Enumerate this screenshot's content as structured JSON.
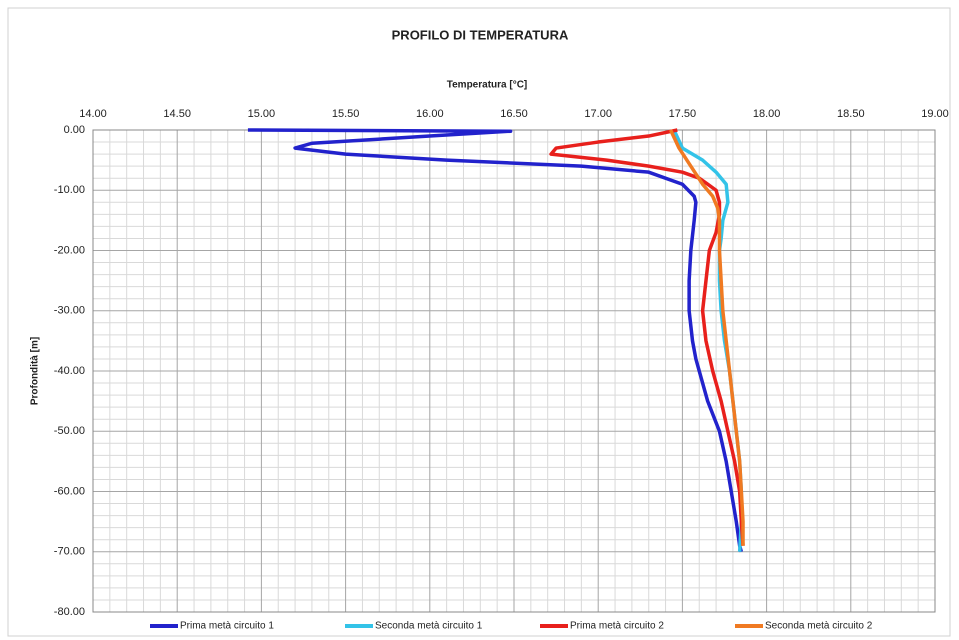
{
  "chart_data": {
    "type": "line",
    "title": "PROFILO DI TEMPERATURA",
    "x_label": "Temperatura [°C]",
    "y_label": "Profondità [m]",
    "xlim": [
      14,
      19
    ],
    "ylim": [
      -80,
      0
    ],
    "xticks": [
      {
        "value": 14,
        "label": "14.00"
      },
      {
        "value": 14.5,
        "label": "14.50"
      },
      {
        "value": 15,
        "label": "15.00"
      },
      {
        "value": 15.5,
        "label": "15.50"
      },
      {
        "value": 16,
        "label": "16.00"
      },
      {
        "value": 16.5,
        "label": "16.50"
      },
      {
        "value": 17,
        "label": "17.00"
      },
      {
        "value": 17.5,
        "label": "17.50"
      },
      {
        "value": 18,
        "label": "18.00"
      },
      {
        "value": 18.5,
        "label": "18.50"
      },
      {
        "value": 19,
        "label": "19.00"
      }
    ],
    "yticks": [
      {
        "value": 0,
        "label": "0.00"
      },
      {
        "value": -10,
        "label": "-10.00"
      },
      {
        "value": -20,
        "label": "-20.00"
      },
      {
        "value": -30,
        "label": "-30.00"
      },
      {
        "value": -40,
        "label": "-40.00"
      },
      {
        "value": -50,
        "label": "-50.00"
      },
      {
        "value": -60,
        "label": "-60.00"
      },
      {
        "value": -70,
        "label": "-70.00"
      },
      {
        "value": -80,
        "label": "-80.00"
      }
    ],
    "grid": true,
    "minor_grid": true,
    "legend": "bottom",
    "series": [
      {
        "name": "Prima metà circuito 1",
        "color": "#2222cc",
        "x": [
          14.92,
          16.48,
          16.0,
          15.3,
          15.2,
          15.5,
          16.1,
          16.9,
          17.3,
          17.5,
          17.57,
          17.58,
          17.57,
          17.55,
          17.54,
          17.54,
          17.56,
          17.58,
          17.6,
          17.65,
          17.72,
          17.76,
          17.79,
          17.82,
          17.84,
          17.85
        ],
        "y": [
          0,
          -0.2,
          -1,
          -2.2,
          -3,
          -4,
          -5,
          -6,
          -7,
          -9,
          -11,
          -12,
          -15,
          -20,
          -25,
          -30,
          -35,
          -38,
          -40,
          -45,
          -50,
          -55,
          -60,
          -65,
          -69,
          -70
        ]
      },
      {
        "name": "Seconda metà circuito 1",
        "color": "#33c3e8",
        "x": [
          17.45,
          17.5,
          17.62,
          17.7,
          17.76,
          17.77,
          17.74,
          17.73,
          17.72,
          17.72,
          17.73,
          17.75,
          17.78,
          17.8,
          17.82,
          17.84,
          17.85,
          17.85,
          17.84
        ],
        "y": [
          0,
          -3,
          -5,
          -7,
          -9,
          -12,
          -15,
          -18,
          -20,
          -25,
          -30,
          -35,
          -40,
          -45,
          -50,
          -55,
          -60,
          -65,
          -70
        ]
      },
      {
        "name": "Prima metà circuito 2",
        "color": "#e8201c",
        "x": [
          17.47,
          17.3,
          17.0,
          16.75,
          16.72,
          17.05,
          17.3,
          17.5,
          17.6,
          17.65,
          17.7,
          17.72,
          17.72,
          17.7,
          17.66,
          17.64,
          17.62,
          17.64,
          17.68,
          17.73,
          17.77,
          17.81,
          17.84,
          17.85,
          17.86
        ],
        "y": [
          0,
          -1,
          -2,
          -3,
          -4,
          -5,
          -6,
          -7,
          -8,
          -9,
          -10,
          -12,
          -14,
          -17,
          -20,
          -25,
          -30,
          -35,
          -40,
          -45,
          -50,
          -55,
          -60,
          -65,
          -69
        ]
      },
      {
        "name": "Seconda metà circuito 2",
        "color": "#f07a22",
        "x": [
          17.43,
          17.48,
          17.55,
          17.62,
          17.68,
          17.71,
          17.72,
          17.72,
          17.73,
          17.74,
          17.76,
          17.78,
          17.8,
          17.82,
          17.84,
          17.85,
          17.86,
          17.86
        ],
        "y": [
          0,
          -3,
          -6,
          -9,
          -11,
          -13,
          -15,
          -20,
          -25,
          -30,
          -35,
          -40,
          -45,
          -50,
          -55,
          -60,
          -65,
          -69
        ]
      }
    ]
  }
}
